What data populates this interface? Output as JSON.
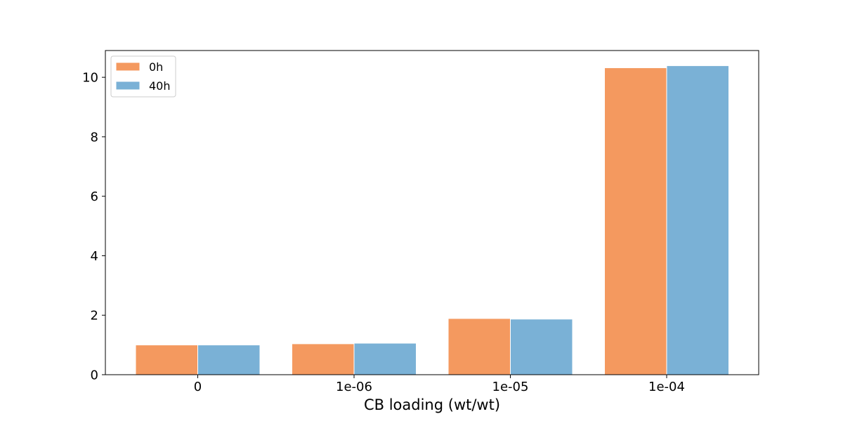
{
  "chart_data": {
    "type": "bar",
    "title": "",
    "xlabel": "CB loading (wt/wt)",
    "ylabel": "",
    "categories": [
      "0",
      "1e-06",
      "1e-05",
      "1e-04"
    ],
    "series": [
      {
        "name": "0h",
        "values": [
          1.0,
          1.04,
          1.89,
          10.32
        ],
        "color": "#f4995f"
      },
      {
        "name": "40h",
        "values": [
          1.0,
          1.06,
          1.87,
          10.39
        ],
        "color": "#7ab1d6"
      }
    ],
    "ylim": [
      0,
      10.9
    ],
    "yticks": [
      0,
      2,
      4,
      6,
      8,
      10
    ],
    "grid": false,
    "legend_position": "top-left"
  }
}
